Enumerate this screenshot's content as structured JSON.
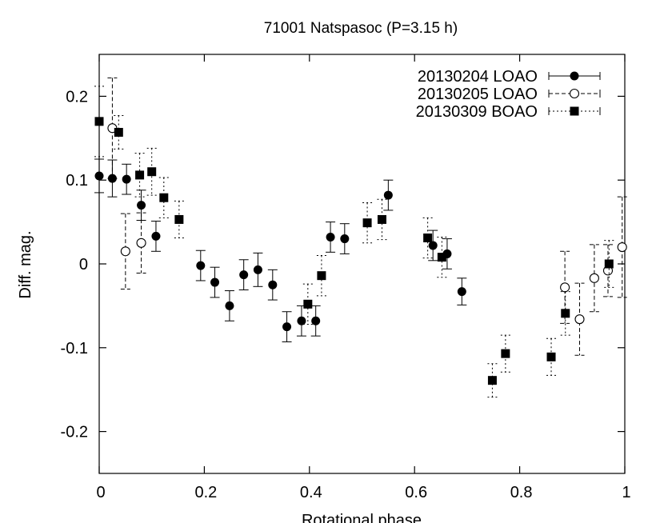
{
  "chart_data": {
    "type": "scatter",
    "title": "71001 Natspasoc (P=3.15 h)",
    "xlabel": "Rotational phase",
    "ylabel": "Diff. mag.",
    "xlim": [
      0,
      1
    ],
    "ylim": [
      -0.25,
      0.25
    ],
    "y_inverted": false,
    "x_ticks": [
      0,
      0.2,
      0.4,
      0.6,
      0.8,
      1
    ],
    "x_tick_labels": [
      "0",
      "0.2",
      "0.4",
      "0.6",
      "0.8",
      "1"
    ],
    "y_ticks": [
      0.2,
      0.1,
      0,
      -0.1,
      -0.2
    ],
    "y_tick_labels": [
      "0.2",
      "0.1",
      "0",
      "-0.1",
      "-0.2"
    ],
    "grid": false,
    "legend_position": "top-right",
    "series": [
      {
        "name": "20130204 LOAO",
        "marker": "filled-circle",
        "line_style": "solid",
        "points": [
          {
            "x": 0.0,
            "y": 0.105,
            "err": 0.02
          },
          {
            "x": 0.025,
            "y": 0.102,
            "err": 0.022
          },
          {
            "x": 0.052,
            "y": 0.101,
            "err": 0.018
          },
          {
            "x": 0.08,
            "y": 0.07,
            "err": 0.018
          },
          {
            "x": 0.108,
            "y": 0.033,
            "err": 0.018
          },
          {
            "x": 0.193,
            "y": -0.002,
            "err": 0.018
          },
          {
            "x": 0.22,
            "y": -0.022,
            "err": 0.018
          },
          {
            "x": 0.248,
            "y": -0.05,
            "err": 0.018
          },
          {
            "x": 0.275,
            "y": -0.013,
            "err": 0.018
          },
          {
            "x": 0.302,
            "y": -0.007,
            "err": 0.02
          },
          {
            "x": 0.33,
            "y": -0.025,
            "err": 0.018
          },
          {
            "x": 0.357,
            "y": -0.075,
            "err": 0.018
          },
          {
            "x": 0.385,
            "y": -0.068,
            "err": 0.018
          },
          {
            "x": 0.412,
            "y": -0.068,
            "err": 0.018
          },
          {
            "x": 0.44,
            "y": 0.032,
            "err": 0.018
          },
          {
            "x": 0.467,
            "y": 0.03,
            "err": 0.018
          },
          {
            "x": 0.55,
            "y": 0.082,
            "err": 0.018
          },
          {
            "x": 0.635,
            "y": 0.022,
            "err": 0.018
          },
          {
            "x": 0.662,
            "y": 0.012,
            "err": 0.018
          },
          {
            "x": 0.69,
            "y": -0.033,
            "err": 0.016
          }
        ]
      },
      {
        "name": "20130205 LOAO",
        "marker": "open-circle",
        "line_style": "dashed",
        "points": [
          {
            "x": 0.025,
            "y": 0.162,
            "err": 0.06
          },
          {
            "x": 0.05,
            "y": 0.015,
            "err": 0.045
          },
          {
            "x": 0.08,
            "y": 0.025,
            "err": 0.036
          },
          {
            "x": 0.886,
            "y": -0.028,
            "err": 0.043
          },
          {
            "x": 0.914,
            "y": -0.066,
            "err": 0.043
          },
          {
            "x": 0.942,
            "y": -0.017,
            "err": 0.04
          },
          {
            "x": 0.968,
            "y": -0.008,
            "err": 0.031
          },
          {
            "x": 0.995,
            "y": 0.02,
            "err": 0.06
          }
        ]
      },
      {
        "name": "20130309 BOAO",
        "marker": "filled-square",
        "line_style": "dotted",
        "points": [
          {
            "x": 0.0,
            "y": 0.17,
            "err": 0.042
          },
          {
            "x": 0.037,
            "y": 0.157,
            "err": 0.02
          },
          {
            "x": 0.077,
            "y": 0.106,
            "err": 0.026
          },
          {
            "x": 0.1,
            "y": 0.11,
            "err": 0.028
          },
          {
            "x": 0.123,
            "y": 0.079,
            "err": 0.024
          },
          {
            "x": 0.152,
            "y": 0.053,
            "err": 0.022
          },
          {
            "x": 0.397,
            "y": -0.048,
            "err": 0.024
          },
          {
            "x": 0.423,
            "y": -0.014,
            "err": 0.024
          },
          {
            "x": 0.51,
            "y": 0.049,
            "err": 0.024
          },
          {
            "x": 0.538,
            "y": 0.053,
            "err": 0.024
          },
          {
            "x": 0.625,
            "y": 0.031,
            "err": 0.024
          },
          {
            "x": 0.652,
            "y": 0.008,
            "err": 0.024
          },
          {
            "x": 0.748,
            "y": -0.139,
            "err": 0.02
          },
          {
            "x": 0.773,
            "y": -0.107,
            "err": 0.022
          },
          {
            "x": 0.86,
            "y": -0.111,
            "err": 0.022
          },
          {
            "x": 0.887,
            "y": -0.059,
            "err": 0.026
          },
          {
            "x": 0.97,
            "y": 0.0,
            "err": 0.028
          }
        ]
      }
    ]
  }
}
